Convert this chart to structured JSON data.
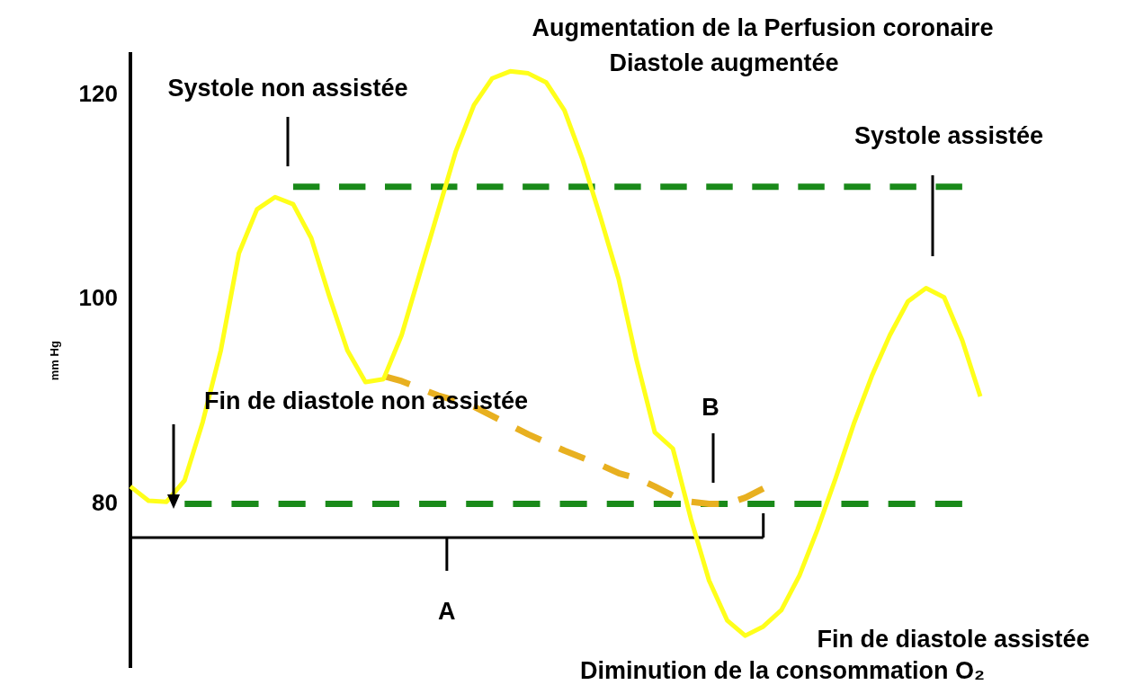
{
  "chart_data": {
    "type": "line",
    "ylabel": "mm Hg",
    "ylim": [
      64,
      124
    ],
    "yticks": [
      80,
      100,
      120
    ],
    "tick_labels": "y",
    "marker": "none",
    "grid": false,
    "categories": [
      null,
      null,
      null,
      null,
      null,
      null,
      null,
      null,
      null,
      null,
      null,
      null,
      null,
      null,
      null,
      null,
      null,
      null,
      null,
      null,
      null,
      null,
      null,
      null,
      null,
      null,
      null,
      null,
      null,
      null,
      null,
      null,
      null,
      null,
      null,
      null,
      null,
      null,
      null,
      null,
      null,
      null,
      null,
      null,
      null,
      null,
      null,
      null
    ],
    "series": [
      {
        "color": "#ffff1a",
        "line_style": "solid",
        "values": [
          81.7,
          80.3,
          80.2,
          82.3,
          88,
          95,
          104.5,
          108.8,
          110,
          109.3,
          106,
          100.3,
          95,
          91.9,
          92.2,
          96.5,
          102.5,
          108.5,
          114.5,
          119,
          121.6,
          122.3,
          122.1,
          121.2,
          118.5,
          113.7,
          108,
          102,
          94,
          87,
          85.4,
          78.5,
          72.5,
          68.6,
          67.1,
          68,
          69.6,
          73,
          77.5,
          82.5,
          87.8,
          92.5,
          96.5,
          99.8,
          101.1,
          100.2,
          96,
          90.5
        ]
      },
      {
        "color": "#e8b020",
        "line_style": "dashed",
        "values": [
          null,
          null,
          null,
          null,
          null,
          null,
          null,
          null,
          null,
          null,
          null,
          null,
          null,
          null,
          92.5,
          92,
          91.3,
          90.6,
          90.1,
          89.5,
          88.6,
          87.7,
          86.8,
          86,
          85.2,
          84.5,
          83.8,
          83,
          82.5,
          81.7,
          80.8,
          80.2,
          80,
          80,
          80.6,
          81.5,
          null,
          null,
          null,
          null,
          null,
          null,
          null,
          null,
          null,
          null,
          null,
          null
        ]
      },
      {
        "color": "#1a8a1a",
        "line_style": "dashed",
        "values": [
          null,
          null,
          null,
          80,
          80,
          80,
          80,
          80,
          80,
          80,
          80,
          80,
          80,
          80,
          80,
          80,
          80,
          80,
          80,
          80,
          80,
          80,
          80,
          80,
          80,
          80,
          80,
          80,
          80,
          80,
          80,
          80,
          80,
          80,
          80,
          80,
          80,
          80,
          80,
          80,
          80,
          80,
          80,
          80,
          80,
          80,
          80,
          null
        ]
      },
      {
        "color": "#1a8a1a",
        "line_style": "dashed",
        "values": [
          null,
          null,
          null,
          null,
          null,
          null,
          null,
          null,
          null,
          111,
          111,
          111,
          111,
          111,
          111,
          111,
          111,
          111,
          111,
          111,
          111,
          111,
          111,
          111,
          111,
          111,
          111,
          111,
          111,
          111,
          111,
          111,
          111,
          111,
          111,
          111,
          111,
          111,
          111,
          111,
          111,
          111,
          111,
          111,
          111,
          111,
          111,
          null
        ]
      },
      {
        "color": "#000000",
        "line_style": "solid",
        "values": [
          76.7,
          76.7,
          76.7,
          76.7,
          76.7,
          76.7,
          76.7,
          76.7,
          76.7,
          76.7,
          76.7,
          76.7,
          76.7,
          76.7,
          76.7,
          76.7,
          76.7,
          76.7,
          76.7,
          76.7,
          76.7,
          76.7,
          76.7,
          76.7,
          76.7,
          76.7,
          76.7,
          76.7,
          76.7,
          76.7,
          76.7,
          76.7,
          76.7,
          76.7,
          76.7,
          76.7,
          null,
          null,
          null,
          null,
          null,
          null,
          null,
          null,
          null,
          null,
          null,
          null
        ]
      }
    ],
    "annotations": [
      "Systole non assistée",
      "Augmentation de la Perfusion coronaire",
      "Diastole augmentée",
      "Systole assistée",
      "Fin de diastole non assistée",
      "B",
      "A",
      "Fin de diastole assistée",
      "Diminution de la consommation O₂"
    ]
  }
}
